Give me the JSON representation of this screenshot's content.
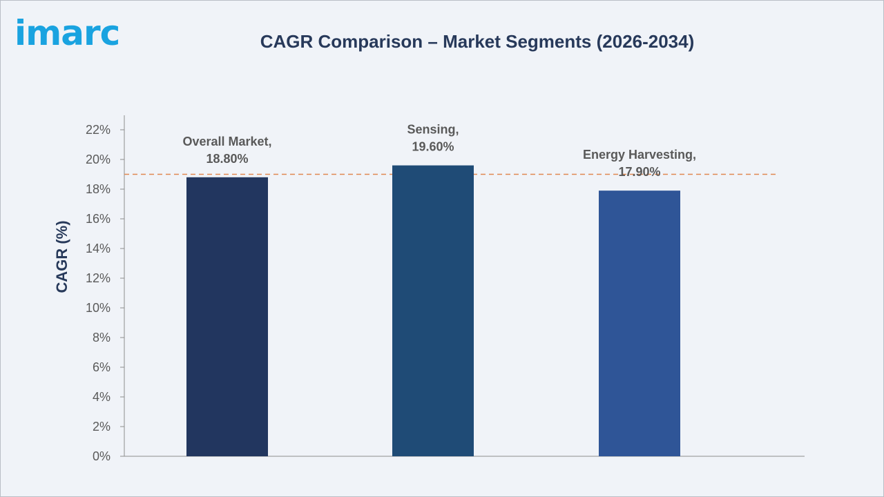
{
  "brand": {
    "logo_text": "imarc"
  },
  "chart_data": {
    "type": "bar",
    "title": "CAGR Comparison – Market Segments (2026-2034)",
    "xlabel": "",
    "ylabel": "CAGR (%)",
    "ylim": [
      0,
      22
    ],
    "yticks": [
      0,
      2,
      4,
      6,
      8,
      10,
      12,
      14,
      16,
      18,
      20,
      22
    ],
    "ytick_labels": [
      "0%",
      "2%",
      "4%",
      "6%",
      "8%",
      "10%",
      "12%",
      "14%",
      "16%",
      "18%",
      "20%",
      "22%"
    ],
    "categories": [
      "Overall Market",
      "Sensing",
      "Energy Harvesting"
    ],
    "values": [
      18.8,
      19.6,
      17.9
    ],
    "data_labels": [
      [
        "Overall Market,",
        "18.80%"
      ],
      [
        "Sensing,",
        "19.60%"
      ],
      [
        "Energy Harvesting,",
        "17.90%"
      ]
    ],
    "colors": [
      "#22365f",
      "#1f4b76",
      "#2f5597"
    ],
    "reference_line": {
      "value": 19.0,
      "color": "#e0874f",
      "style": "dashed"
    },
    "grid": false,
    "legend": "none"
  }
}
